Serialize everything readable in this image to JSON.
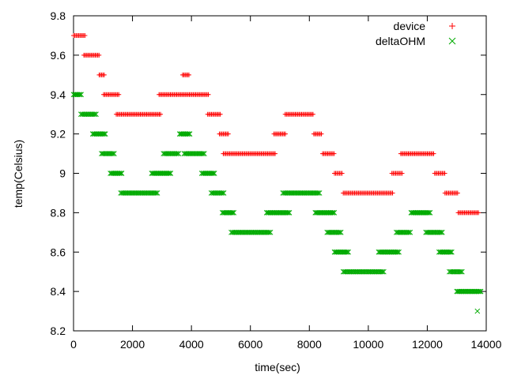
{
  "chart_data": {
    "type": "scatter",
    "title": "",
    "xlabel": "time(sec)",
    "ylabel": "temp(Celsius)",
    "xlim": [
      0,
      14000
    ],
    "ylim": [
      8.2,
      9.8
    ],
    "xticks": [
      0,
      2000,
      4000,
      6000,
      8000,
      10000,
      12000,
      14000
    ],
    "yticks": [
      8.2,
      8.4,
      8.6,
      8.8,
      9.0,
      9.2,
      9.4,
      9.6,
      9.8
    ],
    "xtick_labels": [
      "0",
      "2000",
      "4000",
      "6000",
      "8000",
      "10000",
      "12000",
      "14000"
    ],
    "ytick_labels": [
      "8.2",
      "8.4",
      "8.6",
      "8.8",
      "9",
      "9.2",
      "9.4",
      "9.6",
      "9.8"
    ],
    "grid": false,
    "legend_position": "top-right",
    "series": [
      {
        "name": "device",
        "marker": "plus",
        "color": "#ff0000",
        "segments": [
          {
            "x_start": 0,
            "x_end": 420,
            "y": 9.7
          },
          {
            "x_start": 350,
            "x_end": 870,
            "y": 9.6
          },
          {
            "x_start": 870,
            "x_end": 1070,
            "y": 9.5
          },
          {
            "x_start": 1020,
            "x_end": 1550,
            "y": 9.4
          },
          {
            "x_start": 1450,
            "x_end": 2980,
            "y": 9.3
          },
          {
            "x_start": 2900,
            "x_end": 4580,
            "y": 9.4
          },
          {
            "x_start": 3700,
            "x_end": 3950,
            "y": 9.5
          },
          {
            "x_start": 4550,
            "x_end": 5000,
            "y": 9.3
          },
          {
            "x_start": 4950,
            "x_end": 5280,
            "y": 9.2
          },
          {
            "x_start": 5080,
            "x_end": 6880,
            "y": 9.1
          },
          {
            "x_start": 6800,
            "x_end": 7200,
            "y": 9.2
          },
          {
            "x_start": 7180,
            "x_end": 8150,
            "y": 9.3
          },
          {
            "x_start": 8150,
            "x_end": 8450,
            "y": 9.2
          },
          {
            "x_start": 8450,
            "x_end": 8850,
            "y": 9.1
          },
          {
            "x_start": 8850,
            "x_end": 9150,
            "y": 9.0
          },
          {
            "x_start": 9150,
            "x_end": 10850,
            "y": 8.9
          },
          {
            "x_start": 10800,
            "x_end": 11150,
            "y": 9.0
          },
          {
            "x_start": 11100,
            "x_end": 12250,
            "y": 9.1
          },
          {
            "x_start": 12250,
            "x_end": 12600,
            "y": 9.0
          },
          {
            "x_start": 12600,
            "x_end": 13050,
            "y": 8.9
          },
          {
            "x_start": 13050,
            "x_end": 13750,
            "y": 8.8
          }
        ]
      },
      {
        "name": "deltaOHM",
        "marker": "cross",
        "color": "#00aa00",
        "segments": [
          {
            "x_start": 0,
            "x_end": 300,
            "y": 9.4
          },
          {
            "x_start": 250,
            "x_end": 780,
            "y": 9.3
          },
          {
            "x_start": 650,
            "x_end": 1100,
            "y": 9.2
          },
          {
            "x_start": 950,
            "x_end": 1400,
            "y": 9.1
          },
          {
            "x_start": 1250,
            "x_end": 1650,
            "y": 9.0
          },
          {
            "x_start": 1600,
            "x_end": 2850,
            "y": 8.9
          },
          {
            "x_start": 2650,
            "x_end": 3300,
            "y": 9.0
          },
          {
            "x_start": 3050,
            "x_end": 3600,
            "y": 9.1
          },
          {
            "x_start": 3600,
            "x_end": 3950,
            "y": 9.2
          },
          {
            "x_start": 3750,
            "x_end": 4450,
            "y": 9.1
          },
          {
            "x_start": 4350,
            "x_end": 4820,
            "y": 9.0
          },
          {
            "x_start": 4670,
            "x_end": 5100,
            "y": 8.9
          },
          {
            "x_start": 5050,
            "x_end": 5450,
            "y": 8.8
          },
          {
            "x_start": 5350,
            "x_end": 6700,
            "y": 8.7
          },
          {
            "x_start": 6550,
            "x_end": 7350,
            "y": 8.8
          },
          {
            "x_start": 7100,
            "x_end": 8350,
            "y": 8.9
          },
          {
            "x_start": 8200,
            "x_end": 8850,
            "y": 8.8
          },
          {
            "x_start": 8600,
            "x_end": 9100,
            "y": 8.7
          },
          {
            "x_start": 8850,
            "x_end": 9350,
            "y": 8.6
          },
          {
            "x_start": 9150,
            "x_end": 10550,
            "y": 8.5
          },
          {
            "x_start": 10350,
            "x_end": 11050,
            "y": 8.6
          },
          {
            "x_start": 10950,
            "x_end": 11450,
            "y": 8.7
          },
          {
            "x_start": 11450,
            "x_end": 12100,
            "y": 8.8
          },
          {
            "x_start": 11950,
            "x_end": 12550,
            "y": 8.7
          },
          {
            "x_start": 12400,
            "x_end": 12850,
            "y": 8.6
          },
          {
            "x_start": 12750,
            "x_end": 13200,
            "y": 8.5
          },
          {
            "x_start": 13000,
            "x_end": 13850,
            "y": 8.4
          }
        ],
        "extra_points": [
          {
            "x": 13700,
            "y": 8.3
          }
        ]
      }
    ]
  }
}
